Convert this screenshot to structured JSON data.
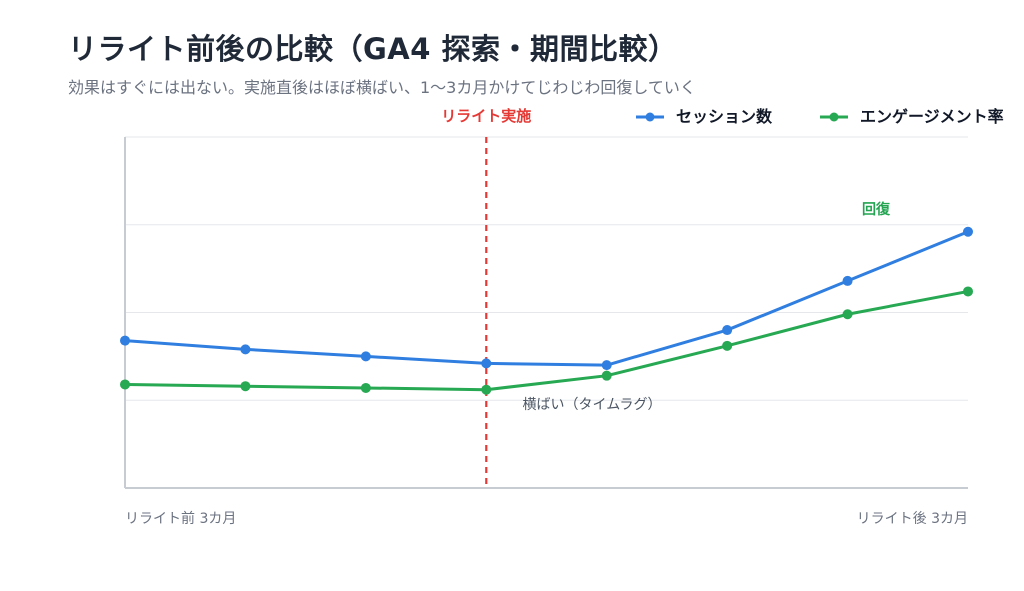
{
  "title": "リライト前後の比較（GA4 探索・期間比較）",
  "subtitle": "効果はすぐには出ない。実施直後はほぼ横ばい、1〜3カ月かけてじわじわ回復していく",
  "chart_data": {
    "type": "line",
    "x_ticks": [
      "リライト前 3カ月",
      "リライト後 3カ月"
    ],
    "ylim": [
      0,
      100
    ],
    "grid": true,
    "legend_position": "top-right",
    "series": [
      {
        "name": "セッション数",
        "color": "#2f7ee0",
        "values": [
          42,
          39.5,
          37.5,
          35.5,
          35,
          45,
          59,
          73
        ]
      },
      {
        "name": "エンゲージメント率",
        "color": "#27a852",
        "values": [
          29.5,
          29,
          28.5,
          28,
          32,
          40.5,
          49.5,
          56
        ]
      }
    ],
    "annotations": {
      "rewrite_marker": {
        "label": "リライト実施",
        "at_index": 3,
        "color": "#e53935"
      },
      "recover_label": "回復",
      "lag_label": "横ばい（タイムラグ）"
    }
  }
}
